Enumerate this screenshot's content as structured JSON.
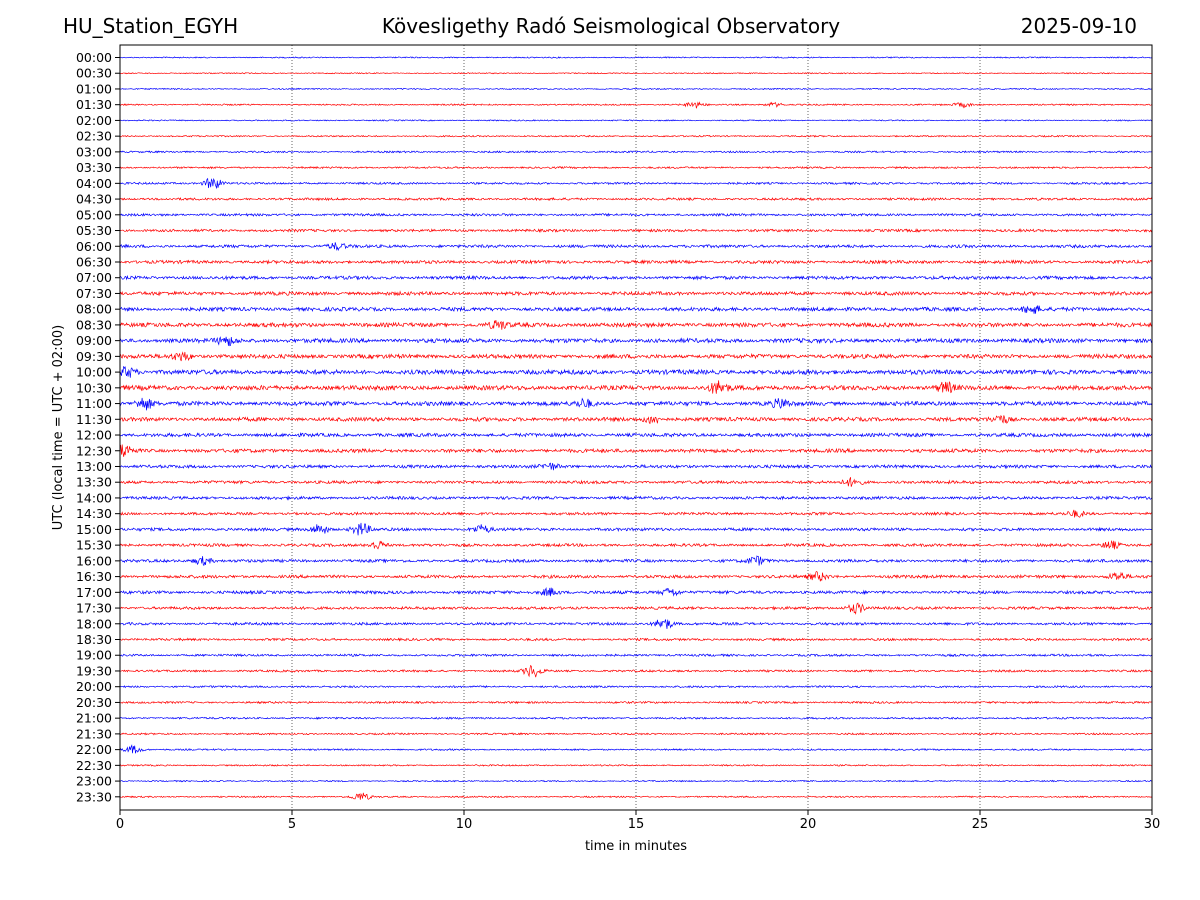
{
  "header": {
    "station": "HU_Station_EGYH",
    "observatory": "Kövesligethy Radó Seismological Observatory",
    "date": "2025-09-10"
  },
  "chart_data": {
    "type": "line",
    "title": "Kövesligethy Radó Seismological Observatory",
    "xlabel": "time in minutes",
    "ylabel": "UTC (local time = UTC + 02:00)",
    "xlim": [
      0,
      30
    ],
    "x_ticks": [
      0,
      5,
      10,
      15,
      20,
      25,
      30
    ],
    "grid": "vertical dotted at x ticks",
    "row_labels": [
      "00:00",
      "00:30",
      "01:00",
      "01:30",
      "02:00",
      "02:30",
      "03:00",
      "03:30",
      "04:00",
      "04:30",
      "05:00",
      "05:30",
      "06:00",
      "06:30",
      "07:00",
      "07:30",
      "08:00",
      "08:30",
      "09:00",
      "09:30",
      "10:00",
      "10:30",
      "11:00",
      "11:30",
      "12:00",
      "12:30",
      "13:00",
      "13:30",
      "14:00",
      "14:30",
      "15:00",
      "15:30",
      "16:00",
      "16:30",
      "17:00",
      "17:30",
      "18:00",
      "18:30",
      "19:00",
      "19:30",
      "20:00",
      "20:30",
      "21:00",
      "21:30",
      "22:00",
      "22:30",
      "23:00",
      "23:30"
    ],
    "colors": [
      "#0000ff",
      "#ff0000"
    ],
    "noise_levels": [
      0.5,
      0.45,
      0.5,
      0.6,
      0.5,
      0.6,
      0.7,
      0.75,
      0.85,
      0.95,
      1.0,
      1.05,
      1.2,
      1.3,
      1.35,
      1.45,
      1.55,
      1.7,
      1.75,
      1.7,
      1.9,
      1.9,
      1.7,
      1.6,
      1.45,
      1.5,
      1.25,
      1.2,
      1.2,
      1.1,
      1.2,
      1.15,
      1.2,
      1.25,
      1.25,
      1.1,
      1.05,
      0.95,
      0.9,
      0.85,
      0.8,
      0.8,
      0.75,
      0.7,
      0.65,
      0.6,
      0.55,
      0.6
    ],
    "events": [
      {
        "row": 3,
        "x": 16.7,
        "amp": 3
      },
      {
        "row": 3,
        "x": 19.0,
        "amp": 2
      },
      {
        "row": 3,
        "x": 24.5,
        "amp": 2
      },
      {
        "row": 8,
        "x": 2.7,
        "amp": 6
      },
      {
        "row": 12,
        "x": 6.3,
        "amp": 3
      },
      {
        "row": 16,
        "x": 26.5,
        "amp": 4
      },
      {
        "row": 17,
        "x": 11.0,
        "amp": 4
      },
      {
        "row": 18,
        "x": 3.1,
        "amp": 4
      },
      {
        "row": 19,
        "x": 1.8,
        "amp": 4
      },
      {
        "row": 20,
        "x": 0.2,
        "amp": 5
      },
      {
        "row": 21,
        "x": 17.4,
        "amp": 6
      },
      {
        "row": 21,
        "x": 24.0,
        "amp": 5
      },
      {
        "row": 22,
        "x": 0.7,
        "amp": 6
      },
      {
        "row": 22,
        "x": 13.5,
        "amp": 4
      },
      {
        "row": 22,
        "x": 19.2,
        "amp": 4
      },
      {
        "row": 23,
        "x": 15.5,
        "amp": 4
      },
      {
        "row": 23,
        "x": 25.6,
        "amp": 4
      },
      {
        "row": 25,
        "x": 0.1,
        "amp": 6
      },
      {
        "row": 26,
        "x": 12.5,
        "amp": 3
      },
      {
        "row": 27,
        "x": 21.3,
        "amp": 4
      },
      {
        "row": 29,
        "x": 27.8,
        "amp": 3
      },
      {
        "row": 30,
        "x": 5.8,
        "amp": 5
      },
      {
        "row": 30,
        "x": 7.0,
        "amp": 6
      },
      {
        "row": 30,
        "x": 10.5,
        "amp": 4
      },
      {
        "row": 31,
        "x": 7.5,
        "amp": 4
      },
      {
        "row": 31,
        "x": 28.8,
        "amp": 4
      },
      {
        "row": 32,
        "x": 2.4,
        "amp": 4
      },
      {
        "row": 32,
        "x": 18.5,
        "amp": 4
      },
      {
        "row": 33,
        "x": 20.3,
        "amp": 4
      },
      {
        "row": 33,
        "x": 29.0,
        "amp": 4
      },
      {
        "row": 34,
        "x": 12.5,
        "amp": 4
      },
      {
        "row": 34,
        "x": 16.0,
        "amp": 4
      },
      {
        "row": 35,
        "x": 21.4,
        "amp": 5
      },
      {
        "row": 36,
        "x": 15.8,
        "amp": 6
      },
      {
        "row": 39,
        "x": 12.0,
        "amp": 6
      },
      {
        "row": 44,
        "x": 0.4,
        "amp": 4
      },
      {
        "row": 47,
        "x": 7.0,
        "amp": 4
      }
    ]
  }
}
